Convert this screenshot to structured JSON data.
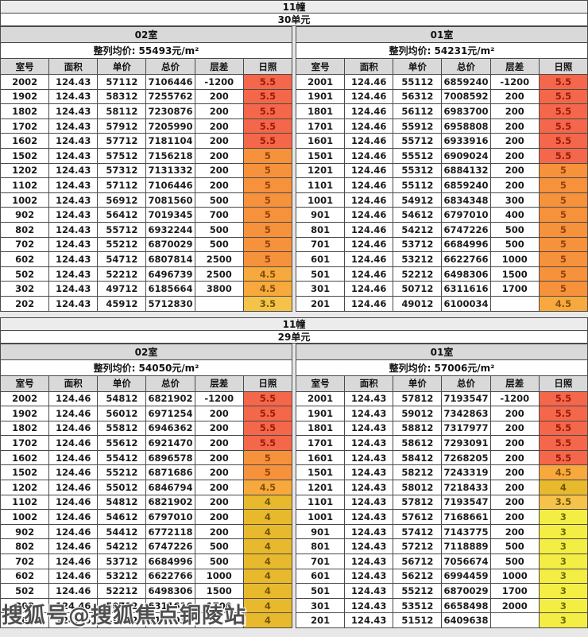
{
  "page": {
    "watermark": "搜狐号@搜狐焦点铜陵站"
  },
  "columns": [
    "室号",
    "面积",
    "单价",
    "总价",
    "层差",
    "日照"
  ],
  "sunshine_colors": {
    "5.5": {
      "bg": "#f4674a",
      "text": "#991b0c"
    },
    "5": {
      "bg": "#f6913c",
      "text": "#93410c"
    },
    "4.5": {
      "bg": "#f7a93d",
      "text": "#84500a"
    },
    "4": {
      "bg": "#e9b92d",
      "text": "#6e5607"
    },
    "3.5": {
      "bg": "#f6c34a",
      "text": "#6e5607"
    },
    "3": {
      "bg": "#f4ee44",
      "text": "#6d6a0e"
    }
  },
  "blocks": [
    {
      "building": "11幢",
      "unit": "30单元",
      "tables": [
        {
          "room": "02室",
          "avg_price": "整列均价: 55493元/m²",
          "rows": [
            [
              "2002",
              "124.43",
              "57112",
              "7106446",
              "-1200",
              "5.5"
            ],
            [
              "1902",
              "124.43",
              "58312",
              "7255762",
              "200",
              "5.5"
            ],
            [
              "1802",
              "124.43",
              "58112",
              "7230876",
              "200",
              "5.5"
            ],
            [
              "1702",
              "124.43",
              "57912",
              "7205990",
              "200",
              "5.5"
            ],
            [
              "1602",
              "124.43",
              "57712",
              "7181104",
              "200",
              "5.5"
            ],
            [
              "1502",
              "124.43",
              "57512",
              "7156218",
              "200",
              "5"
            ],
            [
              "1202",
              "124.43",
              "57312",
              "7131332",
              "200",
              "5"
            ],
            [
              "1102",
              "124.43",
              "57112",
              "7106446",
              "200",
              "5"
            ],
            [
              "1002",
              "124.43",
              "56912",
              "7081560",
              "500",
              "5"
            ],
            [
              "902",
              "124.43",
              "56412",
              "7019345",
              "700",
              "5"
            ],
            [
              "802",
              "124.43",
              "55712",
              "6932244",
              "500",
              "5"
            ],
            [
              "702",
              "124.43",
              "55212",
              "6870029",
              "500",
              "5"
            ],
            [
              "602",
              "124.43",
              "54712",
              "6807814",
              "2500",
              "5"
            ],
            [
              "502",
              "124.43",
              "52212",
              "6496739",
              "2500",
              "4.5"
            ],
            [
              "302",
              "124.43",
              "49712",
              "6185664",
              "3800",
              "4.5"
            ],
            [
              "202",
              "124.43",
              "45912",
              "5712830",
              "",
              "3.5"
            ]
          ]
        },
        {
          "room": "01室",
          "avg_price": "整列均价: 54231元/m²",
          "rows": [
            [
              "2001",
              "124.46",
              "55112",
              "6859240",
              "-1200",
              "5.5"
            ],
            [
              "1901",
              "124.46",
              "56312",
              "7008592",
              "200",
              "5.5"
            ],
            [
              "1801",
              "124.46",
              "56112",
              "6983700",
              "200",
              "5.5"
            ],
            [
              "1701",
              "124.46",
              "55912",
              "6958808",
              "200",
              "5.5"
            ],
            [
              "1601",
              "124.46",
              "55712",
              "6933916",
              "200",
              "5.5"
            ],
            [
              "1501",
              "124.46",
              "55512",
              "6909024",
              "200",
              "5.5"
            ],
            [
              "1201",
              "124.46",
              "55312",
              "6884132",
              "200",
              "5"
            ],
            [
              "1101",
              "124.46",
              "55112",
              "6859240",
              "200",
              "5"
            ],
            [
              "1001",
              "124.46",
              "54912",
              "6834348",
              "300",
              "5"
            ],
            [
              "901",
              "124.46",
              "54612",
              "6797010",
              "400",
              "5"
            ],
            [
              "801",
              "124.46",
              "54212",
              "6747226",
              "500",
              "5"
            ],
            [
              "701",
              "124.46",
              "53712",
              "6684996",
              "500",
              "5"
            ],
            [
              "601",
              "124.46",
              "53212",
              "6622766",
              "1000",
              "5"
            ],
            [
              "501",
              "124.46",
              "52212",
              "6498306",
              "1500",
              "5"
            ],
            [
              "301",
              "124.46",
              "50712",
              "6311616",
              "1700",
              "5"
            ],
            [
              "201",
              "124.46",
              "49012",
              "6100034",
              "",
              "4.5"
            ]
          ]
        }
      ]
    },
    {
      "building": "11幢",
      "unit": "29单元",
      "tables": [
        {
          "room": "02室",
          "avg_price": "整列均价: 54050元/m²",
          "rows": [
            [
              "2002",
              "124.46",
              "54812",
              "6821902",
              "-1200",
              "5.5"
            ],
            [
              "1902",
              "124.46",
              "56012",
              "6971254",
              "200",
              "5.5"
            ],
            [
              "1802",
              "124.46",
              "55812",
              "6946362",
              "200",
              "5.5"
            ],
            [
              "1702",
              "124.46",
              "55612",
              "6921470",
              "200",
              "5.5"
            ],
            [
              "1602",
              "124.46",
              "55412",
              "6896578",
              "200",
              "5"
            ],
            [
              "1502",
              "124.46",
              "55212",
              "6871686",
              "200",
              "5"
            ],
            [
              "1202",
              "124.46",
              "55012",
              "6846794",
              "200",
              "4.5"
            ],
            [
              "1102",
              "124.46",
              "54812",
              "6821902",
              "200",
              "4"
            ],
            [
              "1002",
              "124.46",
              "54612",
              "6797010",
              "200",
              "4"
            ],
            [
              "902",
              "124.46",
              "54412",
              "6772118",
              "200",
              "4"
            ],
            [
              "802",
              "124.46",
              "54212",
              "6747226",
              "500",
              "4"
            ],
            [
              "702",
              "124.46",
              "53712",
              "6684996",
              "500",
              "4"
            ],
            [
              "602",
              "124.46",
              "53212",
              "6622766",
              "1000",
              "4"
            ],
            [
              "502",
              "124.46",
              "52212",
              "6498306",
              "1500",
              "4"
            ],
            [
              "302",
              "124.46",
              "50712",
              "6311616",
              "1700",
              "4"
            ],
            [
              "202",
              "124.46",
              "49012",
              "6100034",
              "",
              "4"
            ]
          ]
        },
        {
          "room": "01室",
          "avg_price": "整列均价: 57006元/m²",
          "rows": [
            [
              "2001",
              "124.43",
              "57812",
              "7193547",
              "-1200",
              "5.5"
            ],
            [
              "1901",
              "124.43",
              "59012",
              "7342863",
              "200",
              "5.5"
            ],
            [
              "1801",
              "124.43",
              "58812",
              "7317977",
              "200",
              "5.5"
            ],
            [
              "1701",
              "124.43",
              "58612",
              "7293091",
              "200",
              "5.5"
            ],
            [
              "1601",
              "124.43",
              "58412",
              "7268205",
              "200",
              "5.5"
            ],
            [
              "1501",
              "124.43",
              "58212",
              "7243319",
              "200",
              "4.5"
            ],
            [
              "1201",
              "124.43",
              "58012",
              "7218433",
              "200",
              "4"
            ],
            [
              "1101",
              "124.43",
              "57812",
              "7193547",
              "200",
              "3.5"
            ],
            [
              "1001",
              "124.43",
              "57612",
              "7168661",
              "200",
              "3"
            ],
            [
              "901",
              "124.43",
              "57412",
              "7143775",
              "200",
              "3"
            ],
            [
              "801",
              "124.43",
              "57212",
              "7118889",
              "500",
              "3"
            ],
            [
              "701",
              "124.43",
              "56712",
              "7056674",
              "500",
              "3"
            ],
            [
              "601",
              "124.43",
              "56212",
              "6994459",
              "1000",
              "3"
            ],
            [
              "501",
              "124.43",
              "55212",
              "6870029",
              "1700",
              "3"
            ],
            [
              "301",
              "124.43",
              "53512",
              "6658498",
              "2000",
              "3"
            ],
            [
              "201",
              "124.43",
              "51512",
              "6409638",
              "",
              "3"
            ]
          ]
        }
      ]
    }
  ]
}
